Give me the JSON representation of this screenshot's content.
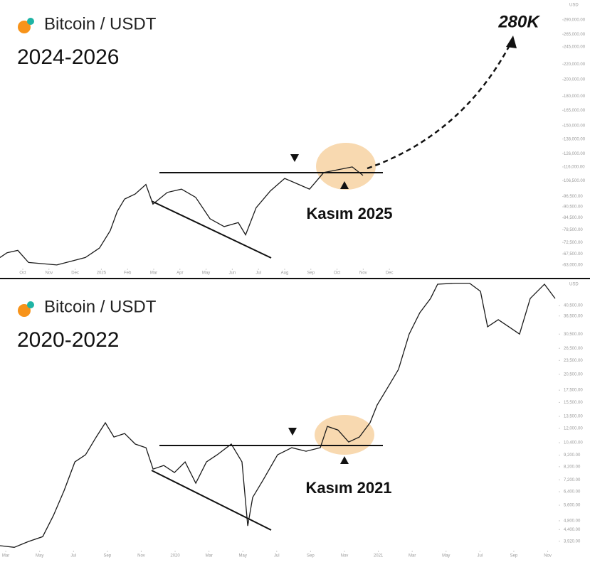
{
  "chart_data": [
    {
      "type": "line",
      "title": "Bitcoin / USDT",
      "subtitle": "2024-2026",
      "currency": "USD",
      "annotations": [
        "280K",
        "Kasım 2025"
      ],
      "log_scale": true,
      "color": "#1a1a1a",
      "x": [
        -0.87,
        -0.6,
        -0.19,
        0.22,
        0.76,
        1.3,
        1.85,
        2.39,
        2.93,
        3.34,
        3.61,
        3.89,
        4.29,
        4.7,
        4.97,
        5.52,
        6.06,
        6.6,
        7.15,
        7.69,
        8.23,
        8.51,
        8.91,
        9.46,
        10.0,
        10.54,
        10.95,
        11.49,
        12.04,
        12.58,
        12.99
      ],
      "values": [
        66000,
        68000,
        69000,
        64000,
        63500,
        63000,
        64500,
        66000,
        70000,
        78000,
        88000,
        95000,
        98000,
        104000,
        92000,
        99000,
        101000,
        96000,
        84000,
        80000,
        82000,
        76000,
        90000,
        100000,
        108000,
        104000,
        101000,
        112000,
        114000,
        116000,
        110000
      ],
      "xlim": [
        -0.87,
        20.6
      ],
      "ylim": [
        61600,
        328000
      ],
      "xticks": [
        {
          "value": 0,
          "label": "Oct"
        },
        {
          "value": 1,
          "label": "Nov"
        },
        {
          "value": 2,
          "label": "Dec"
        },
        {
          "value": 3,
          "label": "2025"
        },
        {
          "value": 4,
          "label": "Feb"
        },
        {
          "value": 5,
          "label": "Mar"
        },
        {
          "value": 6,
          "label": "Apr"
        },
        {
          "value": 7,
          "label": "May"
        },
        {
          "value": 8,
          "label": "Jun"
        },
        {
          "value": 9,
          "label": "Jul"
        },
        {
          "value": 10,
          "label": "Aug"
        },
        {
          "value": 11,
          "label": "Sep"
        },
        {
          "value": 12,
          "label": "Oct"
        },
        {
          "value": 13,
          "label": "Nov"
        },
        {
          "value": 14,
          "label": "Dec"
        }
      ],
      "yticks": [
        {
          "value": 290000,
          "label": "290,000.00"
        },
        {
          "value": 265000,
          "label": "265,000.00"
        },
        {
          "value": 245000,
          "label": "245,000.00"
        },
        {
          "value": 220000,
          "label": "220,000.00"
        },
        {
          "value": 200000,
          "label": "200,000.00"
        },
        {
          "value": 180000,
          "label": "180,000.00"
        },
        {
          "value": 165000,
          "label": "165,000.00"
        },
        {
          "value": 150000,
          "label": "150,000.00"
        },
        {
          "value": 138000,
          "label": "138,000.00"
        },
        {
          "value": 126000,
          "label": "126,000.00"
        },
        {
          "value": 116000,
          "label": "116,000.00"
        },
        {
          "value": 106500,
          "label": "106,500.00"
        },
        {
          "value": 96500,
          "label": "96,500.00"
        },
        {
          "value": 90500,
          "label": "90,500.00"
        },
        {
          "value": 84500,
          "label": "84,500.00"
        },
        {
          "value": 78500,
          "label": "78,500.00"
        },
        {
          "value": 72500,
          "label": "72,500.00"
        },
        {
          "value": 67500,
          "label": "67,500.00"
        },
        {
          "value": 63000,
          "label": "63,000.00"
        }
      ]
    },
    {
      "type": "line",
      "title": "Bitcoin / USDT",
      "subtitle": "2020-2022",
      "currency": "USD",
      "annotations": [
        "Kasım 2021"
      ],
      "log_scale": true,
      "color": "#1a1a1a",
      "x": [
        -0.34,
        0.5,
        1.34,
        2.18,
        2.82,
        3.45,
        4.08,
        4.71,
        5.34,
        5.88,
        6.39,
        7.02,
        7.65,
        8.28,
        8.7,
        9.33,
        9.96,
        10.59,
        11.22,
        11.85,
        12.48,
        13.32,
        13.95,
        14.29,
        14.58,
        15.21,
        16.05,
        16.89,
        17.73,
        18.57,
        18.99,
        19.62,
        20.25,
        20.88,
        21.51,
        21.93,
        22.56,
        23.19,
        23.82,
        24.45,
        25.08,
        25.5,
        26.55,
        27.39,
        28.03,
        28.45,
        29.08,
        29.71,
        30.34,
        30.97,
        31.81,
        32.44
      ],
      "values": [
        3750,
        3690,
        3910,
        4100,
        5070,
        6490,
        8600,
        9230,
        11000,
        12670,
        11000,
        11400,
        10260,
        9900,
        8010,
        8300,
        7740,
        8600,
        6970,
        8600,
        9230,
        10260,
        8600,
        4560,
        6050,
        7210,
        9230,
        9900,
        9560,
        9900,
        12230,
        11800,
        10470,
        11000,
        12670,
        15100,
        18000,
        21500,
        30500,
        37700,
        43400,
        50000,
        50500,
        50500,
        46600,
        32800,
        35200,
        32800,
        30500,
        43400,
        50000,
        43400
      ],
      "xlim": [
        -0.34,
        32.65
      ],
      "ylim": [
        3570,
        51800
      ],
      "xticks": [
        {
          "value": 0,
          "label": "Mar"
        },
        {
          "value": 2,
          "label": "May"
        },
        {
          "value": 4,
          "label": "Jul"
        },
        {
          "value": 6,
          "label": "Sep"
        },
        {
          "value": 8,
          "label": "Nov"
        },
        {
          "value": 10,
          "label": "2020"
        },
        {
          "value": 12,
          "label": "Mar"
        },
        {
          "value": 14,
          "label": "May"
        },
        {
          "value": 16,
          "label": "Jul"
        },
        {
          "value": 18,
          "label": "Sep"
        },
        {
          "value": 20,
          "label": "Nov"
        },
        {
          "value": 22,
          "label": "2021"
        },
        {
          "value": 24,
          "label": "Mar"
        },
        {
          "value": 26,
          "label": "May"
        },
        {
          "value": 28,
          "label": "Jul"
        },
        {
          "value": 30,
          "label": "Sep"
        },
        {
          "value": 32,
          "label": "Nov"
        }
      ],
      "yticks": [
        {
          "value": 40500,
          "label": "40,500.00"
        },
        {
          "value": 36500,
          "label": "36,500.00"
        },
        {
          "value": 30500,
          "label": "30,500.00"
        },
        {
          "value": 26500,
          "label": "26,500.00"
        },
        {
          "value": 23500,
          "label": "23,500.00"
        },
        {
          "value": 20500,
          "label": "20,500.00"
        },
        {
          "value": 17500,
          "label": "17,500.00"
        },
        {
          "value": 15500,
          "label": "15,500.00"
        },
        {
          "value": 13500,
          "label": "13,500.00"
        },
        {
          "value": 12000,
          "label": "12,000.00"
        },
        {
          "value": 10400,
          "label": "10,400.00"
        },
        {
          "value": 9200,
          "label": "9,200.00"
        },
        {
          "value": 8200,
          "label": "8,200.00"
        },
        {
          "value": 7200,
          "label": "7,200.00"
        },
        {
          "value": 6400,
          "label": "6,400.00"
        },
        {
          "value": 5600,
          "label": "5,600.00"
        },
        {
          "value": 4800,
          "label": "4,800.00"
        },
        {
          "value": 4400,
          "label": "4,400.00"
        },
        {
          "value": 3920,
          "label": "3,920.00"
        }
      ]
    }
  ]
}
